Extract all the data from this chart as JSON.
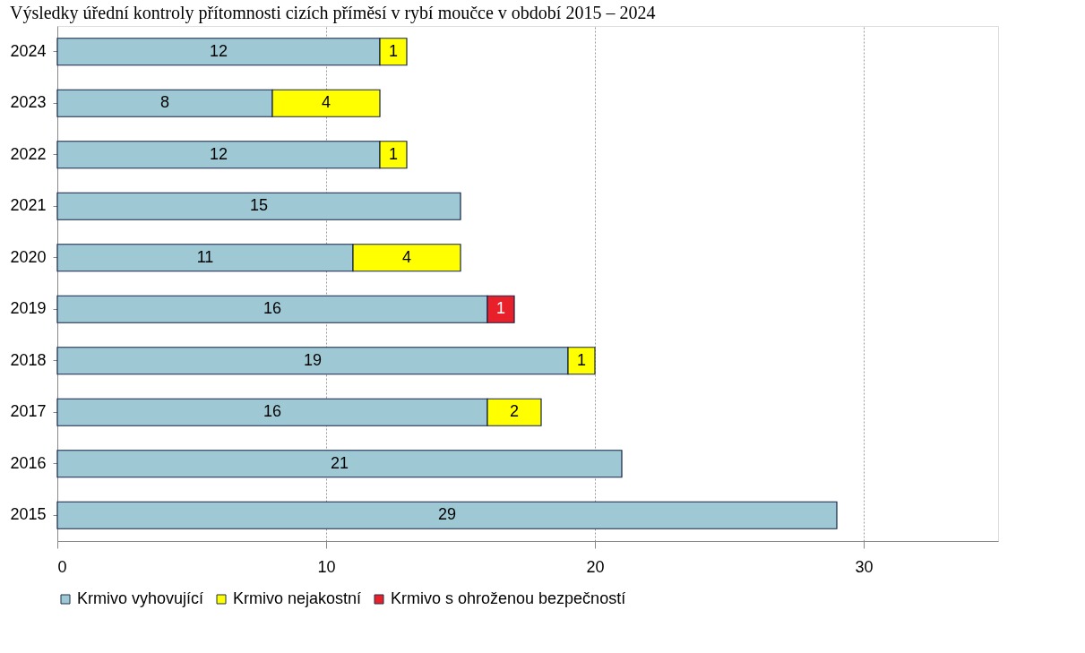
{
  "chart_data": {
    "type": "bar",
    "orientation": "horizontal",
    "stacked": true,
    "title": "Výsledky úřední kontroly přítomnosti cizích příměsí v rybí moučce v období 2015 – 2024",
    "categories": [
      "2024",
      "2023",
      "2022",
      "2021",
      "2020",
      "2019",
      "2018",
      "2017",
      "2016",
      "2015"
    ],
    "series": [
      {
        "name": "Krmivo vyhovující",
        "color": "#9ec9d4",
        "values": [
          12,
          8,
          12,
          15,
          11,
          16,
          19,
          16,
          21,
          29
        ]
      },
      {
        "name": "Krmivo nejakostní",
        "color": "#ffff00",
        "values": [
          1,
          4,
          1,
          null,
          4,
          null,
          1,
          2,
          null,
          null
        ]
      },
      {
        "name": "Krmivo s ohroženou bezpečností",
        "color": "#e8202a",
        "values": [
          null,
          null,
          null,
          null,
          null,
          1,
          null,
          null,
          null,
          null
        ]
      }
    ],
    "xlim": [
      0,
      35
    ],
    "xticks": [
      0,
      10,
      20,
      30
    ],
    "grid": "x",
    "legend": "bottom",
    "data_labels": true
  }
}
